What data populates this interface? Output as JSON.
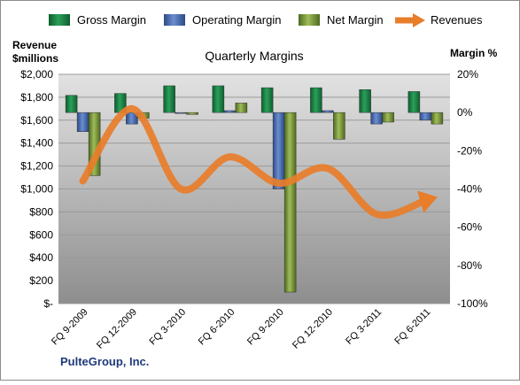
{
  "chart_data": {
    "type": "bar",
    "title": "Quarterly Margins",
    "company": "PulteGroup, Inc.",
    "left_axis_label_line1": "Revenue",
    "left_axis_label_line2": "$millions",
    "right_axis_label": "Margin %",
    "categories": [
      "FQ 9-2009",
      "FQ 12-2009",
      "FQ 3-2010",
      "FQ 6-2010",
      "FQ 9-2010",
      "FQ 12-2010",
      "FQ 3-2011",
      "FQ 6-2011"
    ],
    "left_axis": {
      "min": 0,
      "max": 2000,
      "step": 200,
      "tick_labels": [
        "$-",
        "$200",
        "$400",
        "$600",
        "$800",
        "$1,000",
        "$1,200",
        "$1,400",
        "$1,600",
        "$1,800",
        "$2,000"
      ]
    },
    "right_axis": {
      "min": -100,
      "max": 20,
      "step": 20,
      "tick_labels": [
        "-100%",
        "-80%",
        "-60%",
        "-40%",
        "-20%",
        "0%",
        "20%"
      ]
    },
    "series": [
      {
        "name": "Gross Margin",
        "axis": "right",
        "color": "#1e8a4a",
        "values": [
          9,
          10,
          14,
          14,
          13,
          13,
          12,
          11
        ]
      },
      {
        "name": "Operating Margin",
        "axis": "right",
        "color": "#4a6eb8",
        "values": [
          -10,
          -6,
          0,
          1,
          -40,
          1,
          -6,
          -4
        ]
      },
      {
        "name": "Net Margin",
        "axis": "right",
        "color": "#7a9a3a",
        "values": [
          -33,
          -3,
          -1,
          5,
          -94,
          -14,
          -5,
          -6
        ]
      },
      {
        "name": "Revenues",
        "axis": "left",
        "type": "line",
        "color": "#e87d2a",
        "values": [
          1070,
          1700,
          1000,
          1280,
          1050,
          1180,
          780,
          900
        ]
      }
    ],
    "legend_position": "top",
    "grid": true
  }
}
